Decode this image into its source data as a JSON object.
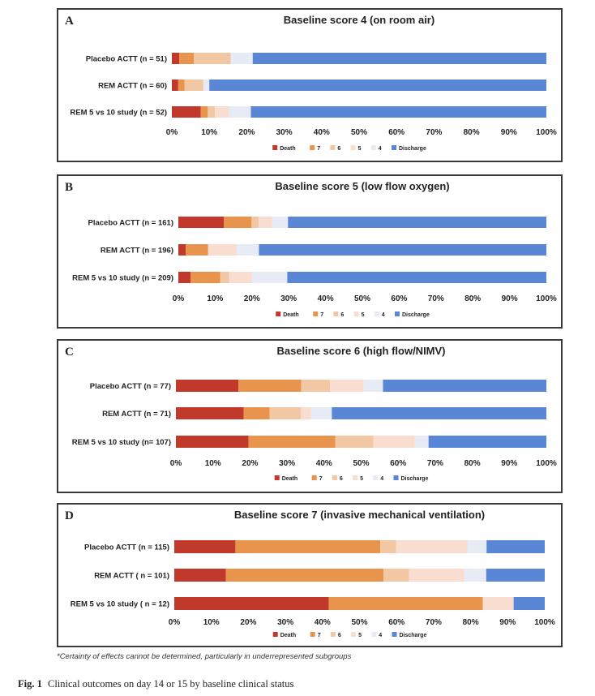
{
  "colors": {
    "Death": "#c0392b",
    "7": "#e8944c",
    "6": "#f2c7a3",
    "5": "#f8ddd0",
    "4": "#e6ebf5",
    "Discharge": "#5a86d6"
  },
  "legend_labels": [
    "Death",
    "7",
    "6",
    "5",
    "4",
    "Discharge"
  ],
  "x_ticks": [
    "0%",
    "10%",
    "20%",
    "30%",
    "40%",
    "50%",
    "60%",
    "70%",
    "80%",
    "90%",
    "100%"
  ],
  "chart_data": [
    {
      "type": "bar",
      "stacked": true,
      "orientation": "horizontal",
      "panel_letter": "A",
      "title": "Baseline score 4 (on room air)",
      "categories": [
        "Placebo ACTT (n = 51)",
        "REM ACTT (n = 60)",
        "REM 5 vs 10 study (n = 52)"
      ],
      "xlim": [
        0,
        100
      ],
      "legend_position": "bottom",
      "series": [
        {
          "name": "Death",
          "values": [
            2,
            1.7,
            7.7
          ]
        },
        {
          "name": "7",
          "values": [
            3.9,
            1.7,
            1.9
          ]
        },
        {
          "name": "6",
          "values": [
            9.8,
            5,
            1.9
          ]
        },
        {
          "name": "5",
          "values": [
            0,
            0,
            3.8
          ]
        },
        {
          "name": "4",
          "values": [
            5.9,
            1.6,
            5.8
          ]
        },
        {
          "name": "Discharge",
          "values": [
            78.4,
            90,
            78.9
          ]
        }
      ]
    },
    {
      "type": "bar",
      "stacked": true,
      "orientation": "horizontal",
      "panel_letter": "B",
      "title": "Baseline score 5 (low flow oxygen)",
      "categories": [
        "Placebo ACTT (n = 161)",
        "REM ACTT (n = 196)",
        "REM 5 vs 10 study (n = 209)"
      ],
      "xlim": [
        0,
        100
      ],
      "legend_position": "bottom",
      "series": [
        {
          "name": "Death",
          "values": [
            12.4,
            2,
            3.3
          ]
        },
        {
          "name": "7",
          "values": [
            7.5,
            6.1,
            8.1
          ]
        },
        {
          "name": "6",
          "values": [
            1.9,
            0,
            2.4
          ]
        },
        {
          "name": "5",
          "values": [
            3.7,
            7.7,
            6.2
          ]
        },
        {
          "name": "4",
          "values": [
            4.3,
            6.1,
            9.6
          ]
        },
        {
          "name": "Discharge",
          "values": [
            70.2,
            78.1,
            70.4
          ]
        }
      ]
    },
    {
      "type": "bar",
      "stacked": true,
      "orientation": "horizontal",
      "panel_letter": "C",
      "title": "Baseline score 6 (high flow/NIMV)",
      "categories": [
        "Placebo ACTT (n = 77)",
        "REM ACTT (n = 71)",
        "REM 5 vs 10 study (n= 107)"
      ],
      "xlim": [
        0,
        100
      ],
      "legend_position": "bottom",
      "series": [
        {
          "name": "Death",
          "values": [
            16.9,
            18.3,
            19.6
          ]
        },
        {
          "name": "7",
          "values": [
            16.9,
            7,
            23.4
          ]
        },
        {
          "name": "6",
          "values": [
            7.8,
            8.4,
            10.3
          ]
        },
        {
          "name": "5",
          "values": [
            9.1,
            2.8,
            11.2
          ]
        },
        {
          "name": "4",
          "values": [
            5.2,
            5.6,
            3.7
          ]
        },
        {
          "name": "Discharge",
          "values": [
            44.1,
            57.9,
            31.8
          ]
        }
      ]
    },
    {
      "type": "bar",
      "stacked": true,
      "orientation": "horizontal",
      "panel_letter": "D",
      "title": "Baseline score 7 (invasive mechanical ventilation)",
      "categories": [
        "Placebo ACTT (n = 115)",
        "REM ACTT ( n = 101)",
        "REM 5 vs 10 study ( n = 12)"
      ],
      "xlim": [
        0,
        100
      ],
      "legend_position": "bottom",
      "series": [
        {
          "name": "Death",
          "values": [
            16.5,
            13.9,
            41.7
          ]
        },
        {
          "name": "7",
          "values": [
            39.1,
            42.6,
            41.6
          ]
        },
        {
          "name": "6",
          "values": [
            4.3,
            6.9,
            0
          ]
        },
        {
          "name": "5",
          "values": [
            19.2,
            14.9,
            8.3
          ]
        },
        {
          "name": "4",
          "values": [
            5.2,
            5.9,
            0
          ]
        },
        {
          "name": "Discharge",
          "values": [
            15.7,
            15.8,
            8.4
          ]
        }
      ]
    }
  ],
  "footnote": "*Certainty of effects cannot be determined, particularly in underrepresented subgroups",
  "caption_label": "Fig. 1",
  "caption_text": "Clinical outcomes on day 14 or 15 by baseline clinical status"
}
